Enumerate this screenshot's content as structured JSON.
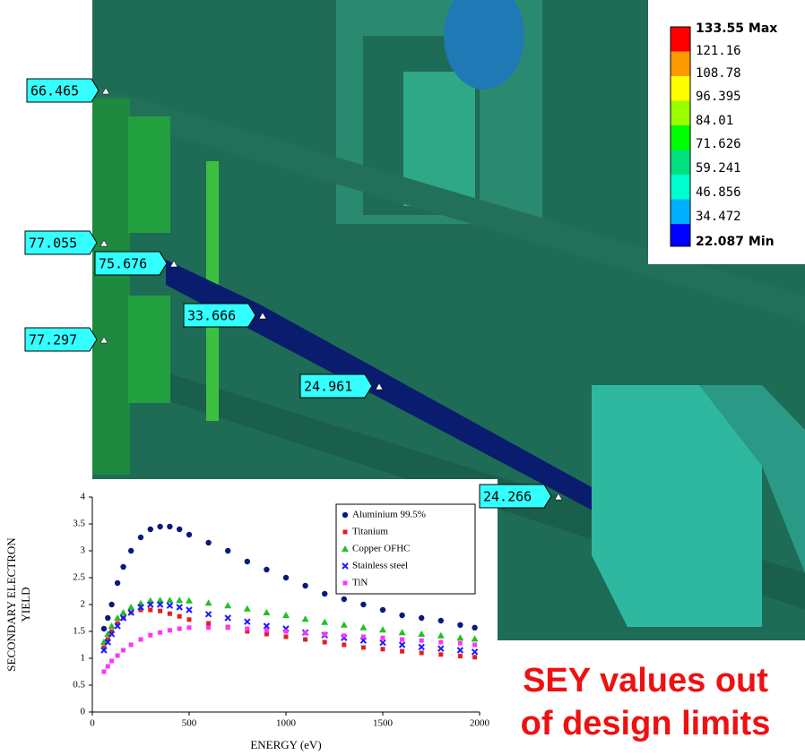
{
  "probes": [
    {
      "label": "66.465"
    },
    {
      "label": "77.055"
    },
    {
      "label": "75.676"
    },
    {
      "label": "33.666"
    },
    {
      "label": "77.297"
    },
    {
      "label": "24.961"
    },
    {
      "label": "24.266"
    }
  ],
  "contour_legend": {
    "labels": [
      "133.55 Max",
      "121.16",
      "108.78",
      "96.395",
      "84.01",
      "71.626",
      "59.241",
      "46.856",
      "34.472",
      "22.087 Min"
    ]
  },
  "note": {
    "lines": [
      "SEY values out",
      "of design limits"
    ]
  },
  "chart_data": {
    "type": "scatter",
    "x_label": "ENERGY (eV)",
    "y_label": [
      "SECONDARY ELECTRON",
      "YIELD"
    ],
    "x": [
      60,
      80,
      100,
      130,
      160,
      200,
      250,
      300,
      350,
      400,
      450,
      500,
      600,
      700,
      800,
      900,
      1000,
      1100,
      1200,
      1300,
      1400,
      1500,
      1600,
      1700,
      1800,
      1900,
      1975
    ],
    "series": [
      {
        "name": "Aluminium 99.5%",
        "color": "#0a1a7a",
        "marker": "circle",
        "values": [
          1.55,
          1.75,
          2.0,
          2.4,
          2.7,
          3.0,
          3.25,
          3.4,
          3.45,
          3.45,
          3.4,
          3.3,
          3.15,
          3.0,
          2.8,
          2.65,
          2.5,
          2.35,
          2.2,
          2.1,
          2.0,
          1.9,
          1.8,
          1.75,
          1.7,
          1.62,
          1.57
        ]
      },
      {
        "name": "Titanium",
        "color": "#e02020",
        "marker": "square",
        "values": [
          1.2,
          1.35,
          1.5,
          1.65,
          1.75,
          1.85,
          1.9,
          1.9,
          1.88,
          1.83,
          1.78,
          1.72,
          1.65,
          1.58,
          1.5,
          1.45,
          1.4,
          1.35,
          1.3,
          1.25,
          1.2,
          1.17,
          1.13,
          1.1,
          1.07,
          1.04,
          1.02
        ]
      },
      {
        "name": "Copper OFHC",
        "color": "#22c022",
        "marker": "triangle",
        "values": [
          1.3,
          1.45,
          1.6,
          1.75,
          1.85,
          1.95,
          2.02,
          2.07,
          2.08,
          2.08,
          2.08,
          2.07,
          2.03,
          1.98,
          1.92,
          1.85,
          1.8,
          1.73,
          1.67,
          1.62,
          1.57,
          1.53,
          1.48,
          1.45,
          1.42,
          1.38,
          1.36
        ]
      },
      {
        "name": "Stainless steel",
        "color": "#1a1aff",
        "marker": "cross",
        "values": [
          1.15,
          1.3,
          1.45,
          1.6,
          1.75,
          1.85,
          1.95,
          2.0,
          2.0,
          1.98,
          1.95,
          1.9,
          1.82,
          1.75,
          1.68,
          1.6,
          1.55,
          1.48,
          1.43,
          1.38,
          1.33,
          1.29,
          1.25,
          1.21,
          1.18,
          1.15,
          1.12
        ]
      },
      {
        "name": "TiN",
        "color": "#ff33ff",
        "marker": "square",
        "values": [
          0.75,
          0.85,
          0.95,
          1.05,
          1.15,
          1.25,
          1.35,
          1.43,
          1.48,
          1.52,
          1.55,
          1.57,
          1.57,
          1.57,
          1.55,
          1.52,
          1.5,
          1.47,
          1.45,
          1.42,
          1.4,
          1.38,
          1.35,
          1.33,
          1.3,
          1.28,
          1.25
        ]
      }
    ],
    "xlim": [
      0,
      2000
    ],
    "xticks": [
      0,
      500,
      1000,
      1500,
      2000
    ],
    "ylim": [
      0,
      4
    ],
    "yticks": [
      0,
      0.5,
      1,
      1.5,
      2,
      2.5,
      3,
      3.5,
      4
    ],
    "legend": "upper right"
  }
}
